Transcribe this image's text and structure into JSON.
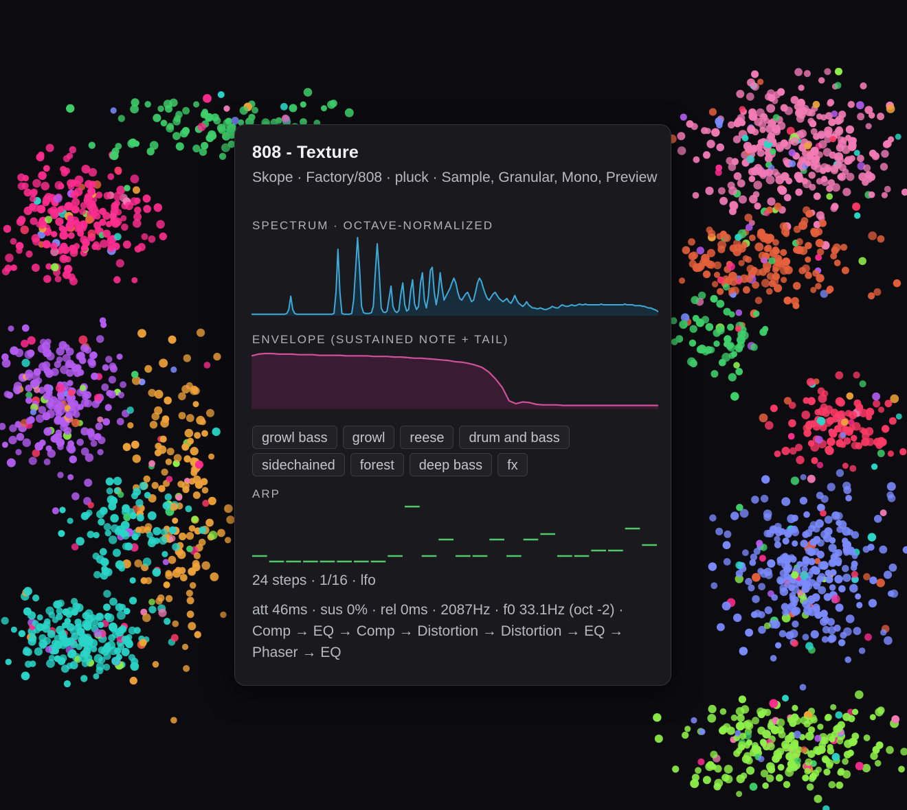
{
  "preset": {
    "title": "808 - Texture",
    "subtitle": "Skope · Factory/808 · pluck · Sample, Granular, Mono, Preview"
  },
  "spectrum": {
    "label": "SPECTRUM · OCTAVE-NORMALIZED",
    "color": "#3fa9d8",
    "values": [
      0.02,
      0.02,
      0.02,
      0.02,
      0.02,
      0.02,
      0.02,
      0.02,
      0.02,
      0.02,
      0.02,
      0.02,
      0.02,
      0.02,
      0.02,
      0.02,
      0.02,
      0.02,
      0.03,
      0.08,
      0.25,
      0.08,
      0.03,
      0.02,
      0.02,
      0.02,
      0.02,
      0.02,
      0.02,
      0.02,
      0.02,
      0.02,
      0.02,
      0.02,
      0.02,
      0.02,
      0.02,
      0.02,
      0.02,
      0.02,
      0.02,
      0.02,
      0.03,
      0.3,
      0.85,
      0.3,
      0.03,
      0.02,
      0.02,
      0.02,
      0.02,
      0.03,
      0.2,
      0.6,
      1.0,
      0.6,
      0.12,
      0.04,
      0.03,
      0.03,
      0.03,
      0.04,
      0.12,
      0.55,
      0.92,
      0.55,
      0.1,
      0.05,
      0.04,
      0.06,
      0.22,
      0.38,
      0.12,
      0.06,
      0.04,
      0.07,
      0.28,
      0.42,
      0.14,
      0.06,
      0.08,
      0.32,
      0.46,
      0.15,
      0.08,
      0.12,
      0.42,
      0.55,
      0.2,
      0.1,
      0.25,
      0.58,
      0.62,
      0.3,
      0.14,
      0.28,
      0.55,
      0.35,
      0.2,
      0.25,
      0.3,
      0.35,
      0.42,
      0.48,
      0.42,
      0.3,
      0.22,
      0.2,
      0.24,
      0.28,
      0.3,
      0.24,
      0.18,
      0.2,
      0.3,
      0.42,
      0.48,
      0.44,
      0.35,
      0.28,
      0.22,
      0.2,
      0.24,
      0.28,
      0.3,
      0.26,
      0.22,
      0.2,
      0.18,
      0.2,
      0.22,
      0.18,
      0.16,
      0.2,
      0.26,
      0.2,
      0.16,
      0.14,
      0.12,
      0.14,
      0.18,
      0.14,
      0.12,
      0.1,
      0.1,
      0.09,
      0.09,
      0.1,
      0.09,
      0.08,
      0.08,
      0.09,
      0.1,
      0.12,
      0.11,
      0.1,
      0.1,
      0.12,
      0.14,
      0.13,
      0.12,
      0.12,
      0.13,
      0.14,
      0.13,
      0.13,
      0.14,
      0.15,
      0.14,
      0.14,
      0.15,
      0.14,
      0.14,
      0.14,
      0.14,
      0.14,
      0.14,
      0.14,
      0.15,
      0.14,
      0.14,
      0.14,
      0.14,
      0.14,
      0.14,
      0.14,
      0.14,
      0.14,
      0.14,
      0.14,
      0.15,
      0.14,
      0.14,
      0.14,
      0.14,
      0.13,
      0.13,
      0.13,
      0.13,
      0.12,
      0.12,
      0.11,
      0.1,
      0.1,
      0.09,
      0.08,
      0.07,
      0.05
    ]
  },
  "envelope": {
    "label": "ENVELOPE (SUSTAINED NOTE + TAIL)",
    "color": "#d0509a",
    "fill": "#3a1c32",
    "values": [
      0.9,
      0.93,
      0.94,
      0.94,
      0.93,
      0.93,
      0.93,
      0.92,
      0.92,
      0.92,
      0.91,
      0.91,
      0.91,
      0.91,
      0.9,
      0.9,
      0.9,
      0.9,
      0.89,
      0.89,
      0.89,
      0.88,
      0.88,
      0.87,
      0.86,
      0.86,
      0.85,
      0.84,
      0.83,
      0.82,
      0.8,
      0.79,
      0.77,
      0.74,
      0.7,
      0.62,
      0.5,
      0.35,
      0.12,
      0.07,
      0.1,
      0.09,
      0.06,
      0.05,
      0.05,
      0.05,
      0.04,
      0.04,
      0.04,
      0.04,
      0.04,
      0.04,
      0.04,
      0.04,
      0.04,
      0.04,
      0.04,
      0.04,
      0.04,
      0.04,
      0.04
    ]
  },
  "tags": {
    "rows": [
      [
        "growl bass",
        "growl",
        "reese",
        "drum and bass"
      ],
      [
        "sidechained",
        "forest",
        "deep bass",
        "fx"
      ]
    ]
  },
  "arp": {
    "label": "ARP",
    "color": "#4ec86a",
    "pitches": [
      0,
      -1,
      -1,
      -1,
      -1,
      -1,
      -1,
      -1,
      0,
      9,
      0,
      3,
      0,
      0,
      3,
      0,
      3,
      4,
      0,
      0,
      1,
      1,
      5,
      2
    ]
  },
  "info": {
    "steps_line": "24 steps · 1/16 · lfo",
    "details_line": "att 46ms · sus 0% · rel 0ms · 2087Hz · f0 33.1Hz (oct -2) · Comp → EQ → Comp → Distortion → Distortion → EQ → Phaser → EQ"
  },
  "background_palette": [
    "#ff2d8f",
    "#b45cf0",
    "#2ad5c8",
    "#f0a33a",
    "#3fd06b",
    "#f27bb5",
    "#e5603c",
    "#7b8bff",
    "#8ff04a",
    "#ff3a66"
  ]
}
